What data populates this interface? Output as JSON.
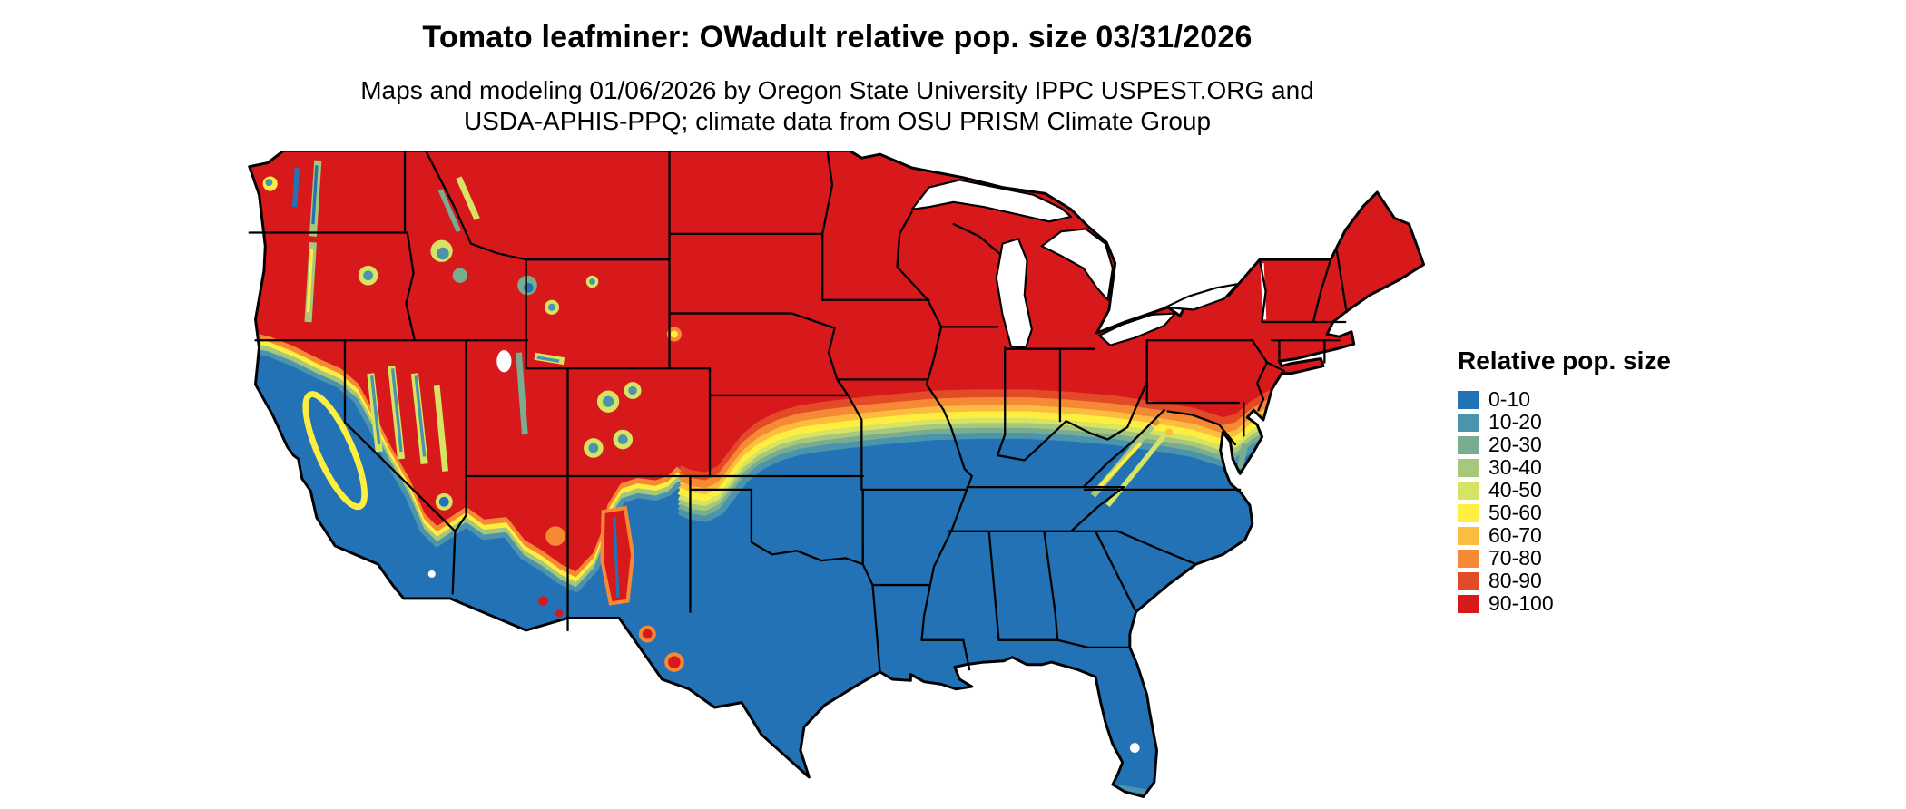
{
  "header": {
    "title": "Tomato leafminer: OWadult relative pop. size 03/31/2026",
    "subtitle_line1": "Maps and modeling 01/06/2026 by Oregon State University IPPC USPEST.ORG and",
    "subtitle_line2": "USDA-APHIS-PPQ; climate data from OSU PRISM Climate Group"
  },
  "map": {
    "region": "Continental United States",
    "border_color": "#000000",
    "water_color": "#ffffff",
    "high_color": "#d7191c",
    "low_color": "#2272b5"
  },
  "legend": {
    "title": "Relative pop. size",
    "items": [
      {
        "label": "0-10",
        "color": "#2272b5"
      },
      {
        "label": "10-20",
        "color": "#4b94ab"
      },
      {
        "label": "20-30",
        "color": "#79ad92"
      },
      {
        "label": "30-40",
        "color": "#a7c77c"
      },
      {
        "label": "40-50",
        "color": "#d7e463"
      },
      {
        "label": "50-60",
        "color": "#feee3f"
      },
      {
        "label": "60-70",
        "color": "#fcbc3f"
      },
      {
        "label": "70-80",
        "color": "#f58934"
      },
      {
        "label": "80-90",
        "color": "#e34a27"
      },
      {
        "label": "90-100",
        "color": "#d7191c"
      }
    ]
  }
}
